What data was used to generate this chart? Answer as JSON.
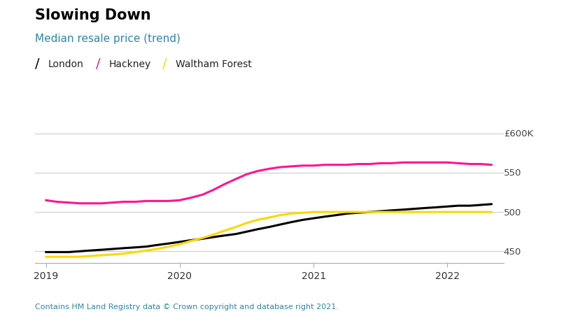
{
  "title": "Slowing Down",
  "subtitle": "Median resale price (trend)",
  "footer": "Contains HM Land Registry data © Crown copyright and database right 2021.",
  "legend": [
    "London",
    "Hackney",
    "Waltham Forest"
  ],
  "line_colors": [
    "#000000",
    "#FF1493",
    "#FFD700"
  ],
  "subtitle_color": "#2E86AB",
  "ylim": [
    435,
    615
  ],
  "yticks": [
    450,
    500,
    550,
    600
  ],
  "ytick_labels": [
    "450",
    "500",
    "550",
    "£600K"
  ],
  "background_color": "#ffffff",
  "x_london": [
    2019.0,
    2019.08,
    2019.17,
    2019.25,
    2019.33,
    2019.42,
    2019.5,
    2019.58,
    2019.67,
    2019.75,
    2019.83,
    2019.92,
    2020.0,
    2020.08,
    2020.17,
    2020.25,
    2020.33,
    2020.42,
    2020.5,
    2020.58,
    2020.67,
    2020.75,
    2020.83,
    2020.92,
    2021.0,
    2021.08,
    2021.17,
    2021.25,
    2021.33,
    2021.42,
    2021.5,
    2021.58,
    2021.67,
    2021.75,
    2021.83,
    2021.92,
    2022.0,
    2022.08,
    2022.17,
    2022.25,
    2022.33
  ],
  "y_london": [
    449,
    449,
    449,
    450,
    451,
    452,
    453,
    454,
    455,
    456,
    458,
    460,
    462,
    464,
    466,
    468,
    470,
    472,
    475,
    478,
    481,
    484,
    487,
    490,
    492,
    494,
    496,
    498,
    499,
    500,
    501,
    502,
    503,
    504,
    505,
    506,
    507,
    508,
    508,
    509,
    510
  ],
  "x_hackney": [
    2019.0,
    2019.08,
    2019.17,
    2019.25,
    2019.33,
    2019.42,
    2019.5,
    2019.58,
    2019.67,
    2019.75,
    2019.83,
    2019.92,
    2020.0,
    2020.08,
    2020.17,
    2020.25,
    2020.33,
    2020.42,
    2020.5,
    2020.58,
    2020.67,
    2020.75,
    2020.83,
    2020.92,
    2021.0,
    2021.08,
    2021.17,
    2021.25,
    2021.33,
    2021.42,
    2021.5,
    2021.58,
    2021.67,
    2021.75,
    2021.83,
    2021.92,
    2022.0,
    2022.08,
    2022.17,
    2022.25,
    2022.33
  ],
  "y_hackney": [
    515,
    513,
    512,
    511,
    511,
    511,
    512,
    513,
    513,
    514,
    514,
    514,
    515,
    518,
    522,
    528,
    535,
    542,
    548,
    552,
    555,
    557,
    558,
    559,
    559,
    560,
    560,
    560,
    561,
    561,
    562,
    562,
    563,
    563,
    563,
    563,
    563,
    562,
    561,
    561,
    560
  ],
  "x_waltham": [
    2019.0,
    2019.08,
    2019.17,
    2019.25,
    2019.33,
    2019.42,
    2019.5,
    2019.58,
    2019.67,
    2019.75,
    2019.83,
    2019.92,
    2020.0,
    2020.08,
    2020.17,
    2020.25,
    2020.33,
    2020.42,
    2020.5,
    2020.58,
    2020.67,
    2020.75,
    2020.83,
    2020.92,
    2021.0,
    2021.08,
    2021.17,
    2021.25,
    2021.33,
    2021.42,
    2021.5,
    2021.58,
    2021.67,
    2021.75,
    2021.83,
    2021.92,
    2022.0,
    2022.08,
    2022.17,
    2022.25,
    2022.33
  ],
  "y_waltham": [
    443,
    443,
    443,
    443,
    444,
    445,
    446,
    447,
    449,
    451,
    453,
    456,
    459,
    463,
    467,
    471,
    476,
    481,
    486,
    490,
    493,
    496,
    498,
    499,
    500,
    500,
    500,
    500,
    500,
    500,
    500,
    500,
    500,
    500,
    500,
    500,
    500,
    500,
    500,
    500,
    500
  ]
}
